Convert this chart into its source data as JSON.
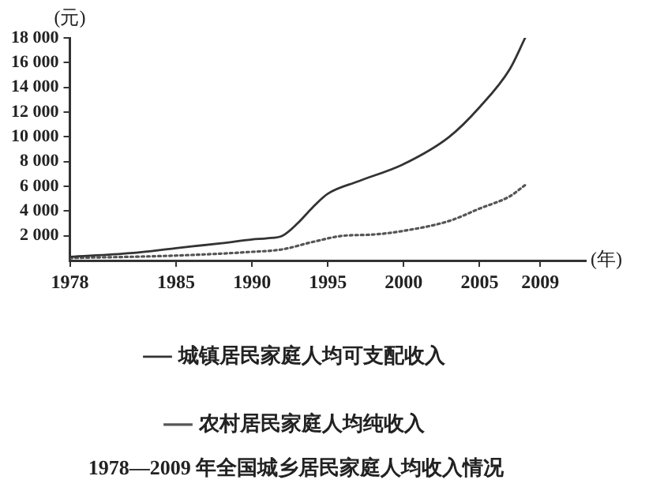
{
  "chart_data": {
    "type": "line",
    "title": "1978—2009 年全国城乡居民家庭人均收入情况",
    "xlabel": "(年)",
    "ylabel": "(元)",
    "xlim": [
      1978,
      2012
    ],
    "xticks": [
      1978,
      1985,
      1990,
      1995,
      2000,
      2005,
      2009
    ],
    "ylim": [
      0,
      18000
    ],
    "yticks": [
      {
        "value": 2000,
        "label": "2 000"
      },
      {
        "value": 4000,
        "label": "4 000"
      },
      {
        "value": 6000,
        "label": "6 000"
      },
      {
        "value": 8000,
        "label": "8 000"
      },
      {
        "value": 10000,
        "label": "10 000"
      },
      {
        "value": 12000,
        "label": "12 000"
      },
      {
        "value": 14000,
        "label": "14 000"
      },
      {
        "value": 16000,
        "label": "16 000"
      },
      {
        "value": 18000,
        "label": "18 000"
      }
    ],
    "grid": false,
    "legend": "bottom",
    "marker": "none",
    "series": [
      {
        "name": "城镇居民家庭人均可支配收入",
        "color": "#333333",
        "line_style": "solid",
        "x": [
          1978,
          1982,
          1985,
          1988,
          1990,
          1991,
          1992,
          1993,
          1994,
          1995,
          1997,
          2000,
          2003,
          2005,
          2007,
          2008
        ],
        "values": [
          300,
          600,
          1000,
          1400,
          1700,
          1800,
          2000,
          3000,
          4300,
          5400,
          6400,
          7800,
          10000,
          12400,
          15500,
          18000
        ]
      },
      {
        "name": "农村居民家庭人均纯收入",
        "color": "#555555",
        "line_style": "dotted",
        "x": [
          1978,
          1985,
          1990,
          1992,
          1994,
          1996,
          1998,
          2000,
          2003,
          2005,
          2007,
          2008
        ],
        "values": [
          200,
          400,
          700,
          900,
          1500,
          2000,
          2100,
          2400,
          3200,
          4200,
          5200,
          6100
        ]
      }
    ]
  }
}
